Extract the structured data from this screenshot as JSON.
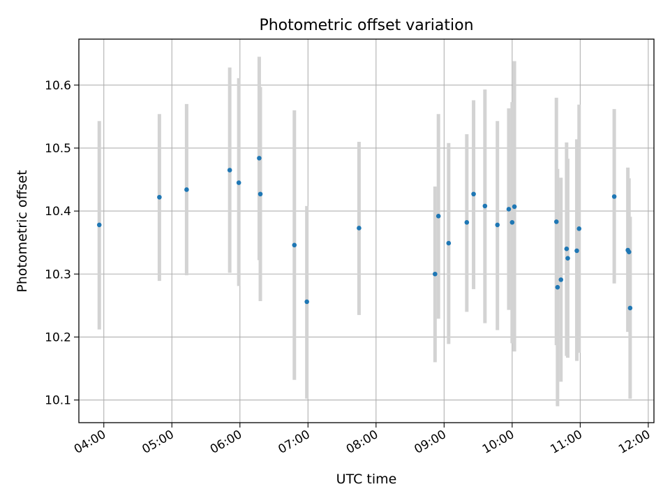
{
  "chart_data": {
    "type": "scatter",
    "title": "Photometric offset variation",
    "xlabel": "UTC time",
    "ylabel": "Photometric offset",
    "x_tick_labels": [
      "04:00",
      "05:00",
      "06:00",
      "07:00",
      "08:00",
      "09:00",
      "10:00",
      "11:00",
      "12:00"
    ],
    "x_tick_hours": [
      4,
      5,
      6,
      7,
      8,
      9,
      10,
      11,
      12
    ],
    "y_tick_labels": [
      "10.1",
      "10.2",
      "10.3",
      "10.4",
      "10.5",
      "10.6"
    ],
    "y_tick_values": [
      10.1,
      10.2,
      10.3,
      10.4,
      10.5,
      10.6
    ],
    "xlim": [
      "03:38",
      "12:05"
    ],
    "ylim": [
      10.064,
      10.673
    ],
    "grid": true,
    "colors": {
      "point": "#1f77b4",
      "errorbar": "#d3d3d3",
      "grid": "#b0b0b0",
      "axes": "#000000"
    },
    "points": [
      {
        "x": "03:56",
        "y": 10.378,
        "ylow": 10.212,
        "yhigh": 10.543
      },
      {
        "x": "04:49",
        "y": 10.422,
        "ylow": 10.289,
        "yhigh": 10.554
      },
      {
        "x": "05:13",
        "y": 10.434,
        "ylow": 10.298,
        "yhigh": 10.57
      },
      {
        "x": "05:51",
        "y": 10.465,
        "ylow": 10.302,
        "yhigh": 10.628
      },
      {
        "x": "05:59",
        "y": 10.445,
        "ylow": 10.281,
        "yhigh": 10.611
      },
      {
        "x": "06:17",
        "y": 10.484,
        "ylow": 10.322,
        "yhigh": 10.645
      },
      {
        "x": "06:18",
        "y": 10.427,
        "ylow": 10.257,
        "yhigh": 10.597
      },
      {
        "x": "06:48",
        "y": 10.346,
        "ylow": 10.132,
        "yhigh": 10.56
      },
      {
        "x": "06:59",
        "y": 10.256,
        "ylow": 10.102,
        "yhigh": 10.408
      },
      {
        "x": "07:45",
        "y": 10.373,
        "ylow": 10.235,
        "yhigh": 10.51
      },
      {
        "x": "08:52",
        "y": 10.3,
        "ylow": 10.16,
        "yhigh": 10.439
      },
      {
        "x": "08:55",
        "y": 10.392,
        "ylow": 10.229,
        "yhigh": 10.554
      },
      {
        "x": "09:04",
        "y": 10.349,
        "ylow": 10.189,
        "yhigh": 10.508
      },
      {
        "x": "09:20",
        "y": 10.382,
        "ylow": 10.24,
        "yhigh": 10.522
      },
      {
        "x": "09:26",
        "y": 10.427,
        "ylow": 10.276,
        "yhigh": 10.576
      },
      {
        "x": "09:36",
        "y": 10.408,
        "ylow": 10.222,
        "yhigh": 10.593
      },
      {
        "x": "09:47",
        "y": 10.378,
        "ylow": 10.211,
        "yhigh": 10.543
      },
      {
        "x": "09:57",
        "y": 10.403,
        "ylow": 10.243,
        "yhigh": 10.563
      },
      {
        "x": "10:00",
        "y": 10.382,
        "ylow": 10.19,
        "yhigh": 10.573
      },
      {
        "x": "10:02",
        "y": 10.407,
        "ylow": 10.177,
        "yhigh": 10.638
      },
      {
        "x": "10:39",
        "y": 10.383,
        "ylow": 10.187,
        "yhigh": 10.58
      },
      {
        "x": "10:40",
        "y": 10.279,
        "ylow": 10.09,
        "yhigh": 10.467
      },
      {
        "x": "10:43",
        "y": 10.291,
        "ylow": 10.129,
        "yhigh": 10.453
      },
      {
        "x": "10:48",
        "y": 10.34,
        "ylow": 10.17,
        "yhigh": 10.509
      },
      {
        "x": "10:49",
        "y": 10.325,
        "ylow": 10.167,
        "yhigh": 10.483
      },
      {
        "x": "10:57",
        "y": 10.337,
        "ylow": 10.162,
        "yhigh": 10.514
      },
      {
        "x": "10:59",
        "y": 10.372,
        "ylow": 10.175,
        "yhigh": 10.569
      },
      {
        "x": "11:30",
        "y": 10.423,
        "ylow": 10.285,
        "yhigh": 10.562
      },
      {
        "x": "11:42",
        "y": 10.338,
        "ylow": 10.208,
        "yhigh": 10.469
      },
      {
        "x": "11:43",
        "y": 10.335,
        "ylow": 10.218,
        "yhigh": 10.452
      },
      {
        "x": "11:44",
        "y": 10.246,
        "ylow": 10.102,
        "yhigh": 10.391
      }
    ]
  }
}
